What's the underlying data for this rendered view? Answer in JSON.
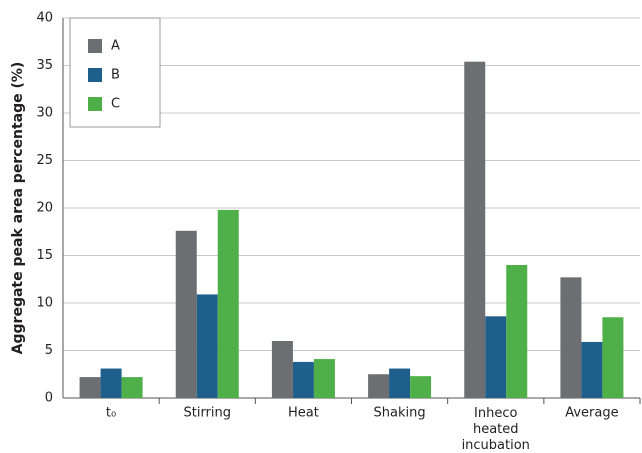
{
  "chart_data": {
    "type": "bar",
    "y_label": "Aggregate peak area percentage (%)",
    "categories": [
      "t₀",
      "Stirring",
      "Heat",
      "Shaking",
      "Inheco heated incubation",
      "Average"
    ],
    "series": [
      {
        "name": "A",
        "color": "#6d6e71",
        "values": [
          2.2,
          17.6,
          6.0,
          2.5,
          35.4,
          12.7
        ]
      },
      {
        "name": "B",
        "color": "#1f5f8b",
        "values": [
          3.1,
          10.9,
          3.8,
          3.1,
          8.6,
          5.9
        ]
      },
      {
        "name": "C",
        "color": "#4fb04a",
        "values": [
          2.2,
          19.8,
          4.1,
          2.3,
          14.0,
          8.5
        ]
      }
    ],
    "ylim": [
      0,
      40
    ],
    "yticks": [
      0,
      5,
      10,
      15,
      20,
      25,
      30,
      35,
      40
    ],
    "grid": true,
    "legend": "top-left"
  }
}
